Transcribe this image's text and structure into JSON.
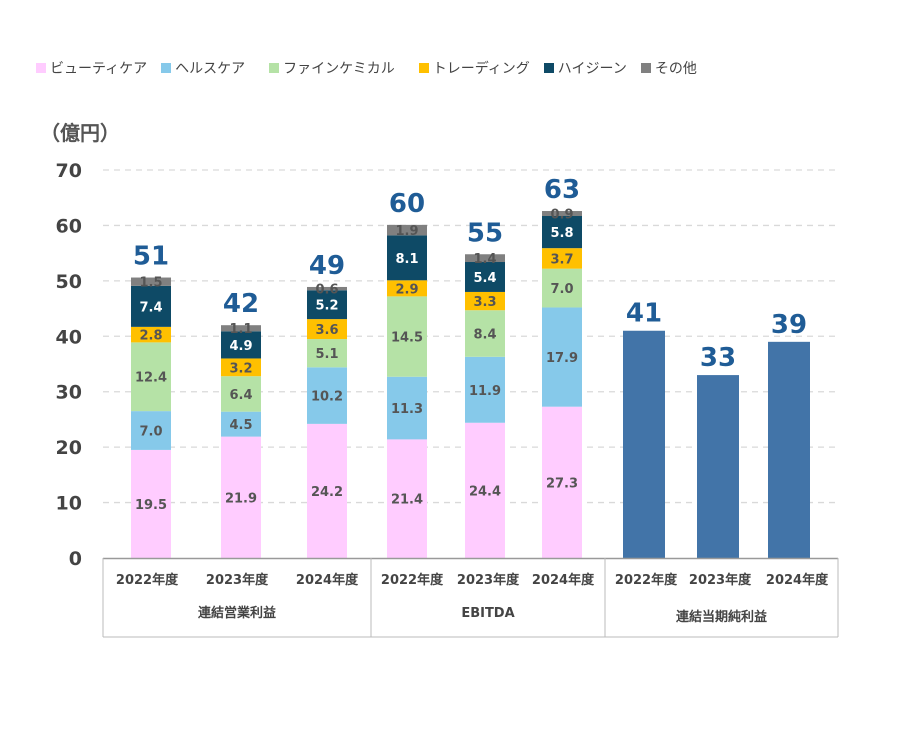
{
  "chart_data": {
    "type": "bar",
    "stacked": true,
    "unit_label": "（億円）",
    "ylim": [
      0,
      70
    ],
    "yticks": [
      0,
      10,
      20,
      30,
      40,
      50,
      60,
      70
    ],
    "grid": true,
    "legend_position": "top",
    "legend": [
      {
        "name": "ビューティケア",
        "color": "#ffccff"
      },
      {
        "name": "ヘルスケア",
        "color": "#86c9ea"
      },
      {
        "name": "ファインケミカル",
        "color": "#b5e2a6"
      },
      {
        "name": "トレーディング",
        "color": "#ffc000"
      },
      {
        "name": "ハイジーン",
        "color": "#0e4a66"
      },
      {
        "name": "その他",
        "color": "#808080"
      }
    ],
    "groups": [
      {
        "name": "連結営業利益",
        "categories": [
          "2022年度",
          "2023年度",
          "2024年度"
        ],
        "totals": [
          51,
          42,
          49
        ],
        "series": [
          {
            "name": "ビューティケア",
            "values": [
              19.5,
              21.9,
              24.2
            ]
          },
          {
            "name": "ヘルスケア",
            "values": [
              7.0,
              4.5,
              10.2
            ]
          },
          {
            "name": "ファインケミカル",
            "values": [
              12.4,
              6.4,
              5.1
            ]
          },
          {
            "name": "トレーディング",
            "values": [
              2.8,
              3.2,
              3.6
            ]
          },
          {
            "name": "ハイジーン",
            "values": [
              7.4,
              4.9,
              5.2
            ]
          },
          {
            "name": "その他",
            "values": [
              1.5,
              1.1,
              0.6
            ]
          }
        ]
      },
      {
        "name": "EBITDA",
        "categories": [
          "2022年度",
          "2023年度",
          "2024年度"
        ],
        "totals": [
          60,
          55,
          63
        ],
        "series": [
          {
            "name": "ビューティケア",
            "values": [
              21.4,
              24.4,
              27.3
            ]
          },
          {
            "name": "ヘルスケア",
            "values": [
              11.3,
              11.9,
              17.9
            ]
          },
          {
            "name": "ファインケミカル",
            "values": [
              14.5,
              8.4,
              7.0
            ]
          },
          {
            "name": "トレーディング",
            "values": [
              2.9,
              3.3,
              3.7
            ]
          },
          {
            "name": "ハイジーン",
            "values": [
              8.1,
              5.4,
              5.8
            ]
          },
          {
            "name": "その他",
            "values": [
              1.9,
              1.4,
              0.9
            ]
          }
        ]
      },
      {
        "name": "連結当期純利益",
        "categories": [
          "2022年度",
          "2023年度",
          "2024年度"
        ],
        "totals": [
          41,
          33,
          39
        ],
        "color": "#4274a8",
        "series": []
      }
    ]
  }
}
